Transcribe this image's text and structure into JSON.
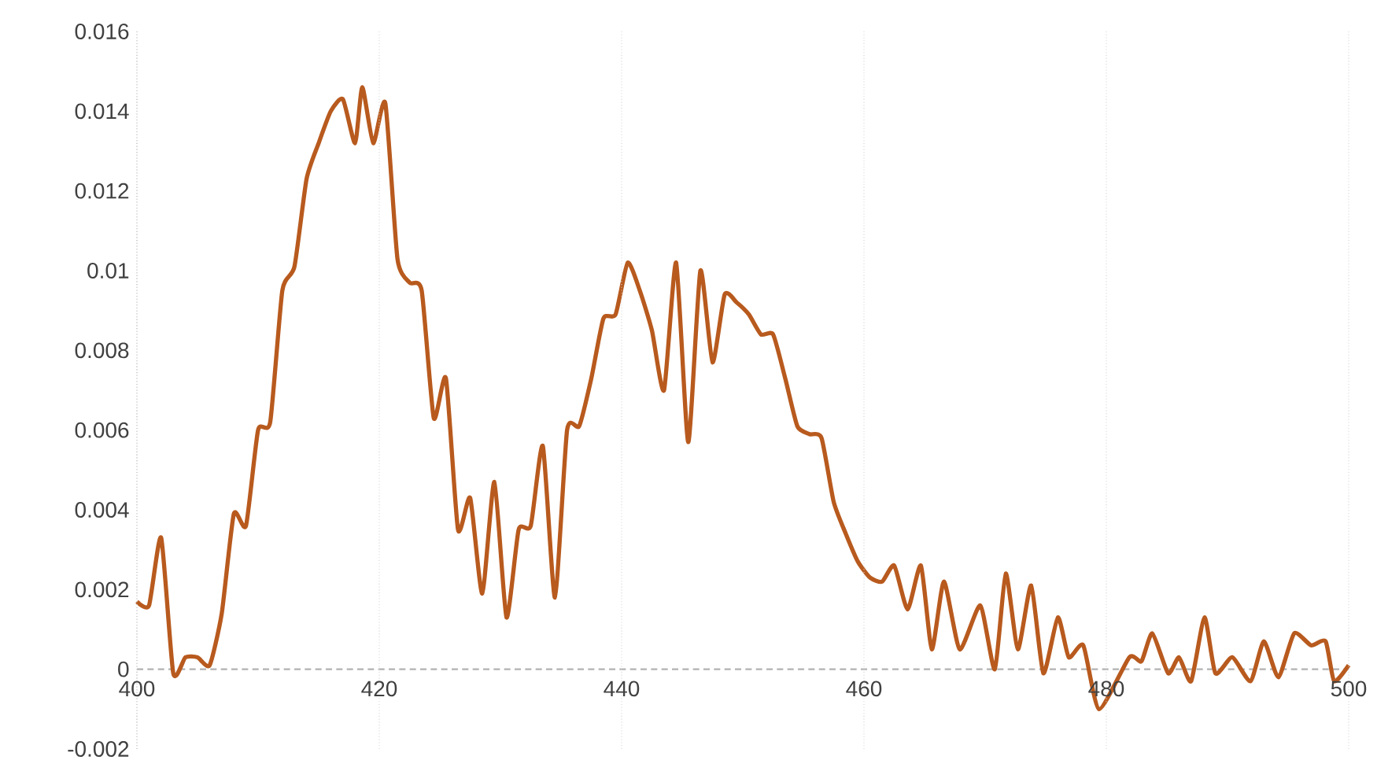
{
  "chart_data": {
    "type": "line",
    "xlim": [
      400,
      500
    ],
    "ylim": [
      -0.002,
      0.016
    ],
    "xticks": [
      400,
      420,
      440,
      460,
      480,
      500
    ],
    "yticks": [
      -0.002,
      0,
      0.002,
      0.004,
      0.006,
      0.008,
      0.01,
      0.012,
      0.014,
      0.016
    ],
    "grid": "x",
    "marker": "none",
    "line_style": "solid",
    "ref_lines": [
      {
        "axis": "y",
        "value": 0,
        "color": "#b2b2b2",
        "line_style": "dashed"
      }
    ],
    "series": [
      {
        "color": "#b85a1e",
        "x": [
          400,
          401,
          402,
          403,
          404,
          405,
          406,
          407,
          408,
          409,
          410,
          411,
          412,
          413,
          414,
          415,
          416,
          417,
          418,
          418.6,
          419.5,
          420.5,
          421.5,
          422.5,
          423.5,
          424.5,
          425.5,
          426.5,
          427.5,
          428.5,
          429.5,
          430.5,
          431.5,
          432.5,
          433.5,
          434.5,
          435.5,
          436.5,
          437.5,
          438.5,
          439.5,
          440.5,
          441.5,
          442.5,
          443.5,
          444.5,
          445.5,
          446.5,
          447.5,
          448.5,
          449.5,
          450.5,
          451.5,
          452.5,
          453.5,
          454.5,
          455.5,
          456.5,
          457.5,
          458.5,
          459.5,
          460.5,
          461.5,
          462.5,
          463.6,
          464.7,
          465.6,
          466.6,
          467.9,
          469.6,
          470.8,
          471.7,
          472.7,
          473.8,
          474.8,
          476.0,
          476.9,
          478.1,
          479.4,
          481.9,
          482.9,
          483.8,
          485.1,
          486.0,
          487.0,
          488.1,
          489.0,
          490.4,
          491.9,
          493.0,
          494.2,
          495.5,
          496.9,
          498.1,
          498.8,
          500
        ],
        "values": [
          0.0017,
          0.0016,
          0.0033,
          -0.0001,
          0.0003,
          0.0003,
          0.0001,
          0.0014,
          0.0039,
          0.0036,
          0.006,
          0.0062,
          0.0095,
          0.0101,
          0.0123,
          0.0132,
          0.014,
          0.0143,
          0.0132,
          0.0146,
          0.0132,
          0.0142,
          0.0103,
          0.0097,
          0.0095,
          0.0063,
          0.0073,
          0.0035,
          0.0043,
          0.0019,
          0.0047,
          0.0013,
          0.0035,
          0.0036,
          0.0056,
          0.0018,
          0.006,
          0.0061,
          0.0073,
          0.0088,
          0.0089,
          0.0102,
          0.0095,
          0.0085,
          0.007,
          0.0102,
          0.0057,
          0.01,
          0.0077,
          0.0094,
          0.0092,
          0.0089,
          0.0084,
          0.0084,
          0.0073,
          0.0061,
          0.0059,
          0.0058,
          0.0042,
          0.0034,
          0.0027,
          0.0023,
          0.0022,
          0.0026,
          0.0015,
          0.0026,
          0.0005,
          0.0022,
          0.0005,
          0.0016,
          0.0,
          0.0024,
          0.0005,
          0.0021,
          -0.0001,
          0.0013,
          0.0003,
          0.0006,
          -0.001,
          0.0003,
          0.0002,
          0.0009,
          -0.0001,
          0.0003,
          -0.0003,
          0.0013,
          -0.0001,
          0.0003,
          -0.0003,
          0.0007,
          -0.0002,
          0.0009,
          0.0006,
          0.0007,
          -0.0003,
          0.0001
        ]
      }
    ]
  }
}
